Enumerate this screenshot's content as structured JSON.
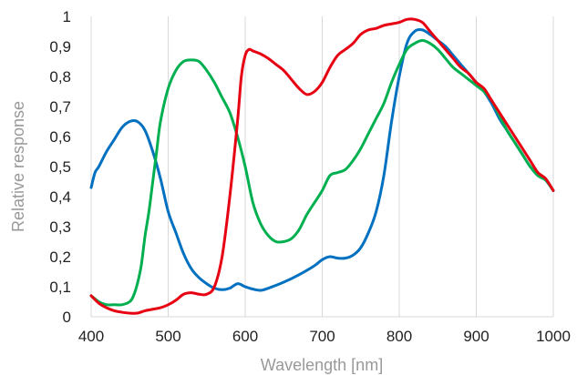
{
  "chart_data": {
    "type": "line",
    "title": "",
    "xlabel": "Wavelength [nm]",
    "ylabel": "Relative response",
    "xlim": [
      400,
      1000
    ],
    "ylim": [
      0,
      1
    ],
    "x_ticks": [
      400,
      500,
      600,
      700,
      800,
      900,
      1000
    ],
    "y_ticks": [
      0,
      0.1,
      0.2,
      0.3,
      0.4,
      0.5,
      0.6,
      0.7,
      0.8,
      0.9,
      1
    ],
    "y_tick_labels": [
      "0",
      "0,1",
      "0,2",
      "0,3",
      "0,4",
      "0,5",
      "0,6",
      "0,7",
      "0,8",
      "0,9",
      "1"
    ],
    "grid": "vertical",
    "legend": "none",
    "series": [
      {
        "color": "#0070c0",
        "points": [
          [
            400,
            0.43
          ],
          [
            405,
            0.48
          ],
          [
            410,
            0.5
          ],
          [
            420,
            0.55
          ],
          [
            430,
            0.59
          ],
          [
            440,
            0.63
          ],
          [
            450,
            0.65
          ],
          [
            460,
            0.65
          ],
          [
            470,
            0.62
          ],
          [
            480,
            0.55
          ],
          [
            490,
            0.46
          ],
          [
            500,
            0.35
          ],
          [
            510,
            0.28
          ],
          [
            520,
            0.21
          ],
          [
            530,
            0.16
          ],
          [
            540,
            0.13
          ],
          [
            550,
            0.11
          ],
          [
            560,
            0.095
          ],
          [
            570,
            0.09
          ],
          [
            580,
            0.095
          ],
          [
            590,
            0.11
          ],
          [
            600,
            0.1
          ],
          [
            610,
            0.092
          ],
          [
            620,
            0.088
          ],
          [
            630,
            0.095
          ],
          [
            650,
            0.115
          ],
          [
            670,
            0.14
          ],
          [
            690,
            0.17
          ],
          [
            700,
            0.19
          ],
          [
            710,
            0.2
          ],
          [
            720,
            0.195
          ],
          [
            730,
            0.195
          ],
          [
            740,
            0.205
          ],
          [
            750,
            0.23
          ],
          [
            760,
            0.28
          ],
          [
            770,
            0.35
          ],
          [
            780,
            0.47
          ],
          [
            790,
            0.65
          ],
          [
            800,
            0.8
          ],
          [
            810,
            0.91
          ],
          [
            820,
            0.95
          ],
          [
            830,
            0.955
          ],
          [
            840,
            0.94
          ],
          [
            850,
            0.92
          ],
          [
            860,
            0.9
          ],
          [
            870,
            0.87
          ],
          [
            880,
            0.84
          ],
          [
            890,
            0.81
          ],
          [
            900,
            0.78
          ],
          [
            910,
            0.75
          ],
          [
            920,
            0.71
          ],
          [
            930,
            0.66
          ],
          [
            940,
            0.62
          ],
          [
            950,
            0.58
          ],
          [
            960,
            0.54
          ],
          [
            970,
            0.5
          ],
          [
            980,
            0.47
          ],
          [
            990,
            0.455
          ],
          [
            1000,
            0.42
          ]
        ]
      },
      {
        "color": "#00b050",
        "points": [
          [
            400,
            0.07
          ],
          [
            410,
            0.05
          ],
          [
            420,
            0.04
          ],
          [
            430,
            0.04
          ],
          [
            440,
            0.04
          ],
          [
            450,
            0.05
          ],
          [
            455,
            0.07
          ],
          [
            460,
            0.11
          ],
          [
            465,
            0.17
          ],
          [
            470,
            0.27
          ],
          [
            475,
            0.35
          ],
          [
            480,
            0.45
          ],
          [
            485,
            0.55
          ],
          [
            490,
            0.65
          ],
          [
            500,
            0.76
          ],
          [
            510,
            0.82
          ],
          [
            520,
            0.85
          ],
          [
            530,
            0.855
          ],
          [
            540,
            0.85
          ],
          [
            550,
            0.82
          ],
          [
            560,
            0.78
          ],
          [
            570,
            0.73
          ],
          [
            580,
            0.68
          ],
          [
            590,
            0.6
          ],
          [
            600,
            0.5
          ],
          [
            610,
            0.38
          ],
          [
            620,
            0.31
          ],
          [
            630,
            0.27
          ],
          [
            640,
            0.25
          ],
          [
            650,
            0.25
          ],
          [
            660,
            0.26
          ],
          [
            670,
            0.29
          ],
          [
            680,
            0.34
          ],
          [
            690,
            0.38
          ],
          [
            700,
            0.42
          ],
          [
            710,
            0.47
          ],
          [
            720,
            0.48
          ],
          [
            730,
            0.49
          ],
          [
            740,
            0.52
          ],
          [
            750,
            0.56
          ],
          [
            760,
            0.61
          ],
          [
            770,
            0.66
          ],
          [
            780,
            0.71
          ],
          [
            790,
            0.78
          ],
          [
            800,
            0.84
          ],
          [
            810,
            0.89
          ],
          [
            820,
            0.91
          ],
          [
            830,
            0.92
          ],
          [
            840,
            0.91
          ],
          [
            850,
            0.89
          ],
          [
            860,
            0.86
          ],
          [
            870,
            0.83
          ],
          [
            880,
            0.81
          ],
          [
            890,
            0.79
          ],
          [
            900,
            0.77
          ],
          [
            910,
            0.75
          ],
          [
            920,
            0.72
          ],
          [
            930,
            0.67
          ],
          [
            940,
            0.62
          ],
          [
            950,
            0.58
          ],
          [
            960,
            0.54
          ],
          [
            970,
            0.5
          ],
          [
            980,
            0.47
          ],
          [
            990,
            0.455
          ],
          [
            1000,
            0.42
          ]
        ]
      },
      {
        "color": "#e60012",
        "points": [
          [
            400,
            0.07
          ],
          [
            410,
            0.045
          ],
          [
            420,
            0.03
          ],
          [
            430,
            0.02
          ],
          [
            440,
            0.015
          ],
          [
            450,
            0.012
          ],
          [
            460,
            0.012
          ],
          [
            470,
            0.02
          ],
          [
            480,
            0.025
          ],
          [
            490,
            0.03
          ],
          [
            500,
            0.04
          ],
          [
            510,
            0.055
          ],
          [
            520,
            0.075
          ],
          [
            530,
            0.08
          ],
          [
            540,
            0.075
          ],
          [
            550,
            0.075
          ],
          [
            560,
            0.1
          ],
          [
            570,
            0.2
          ],
          [
            580,
            0.4
          ],
          [
            590,
            0.65
          ],
          [
            595,
            0.8
          ],
          [
            600,
            0.87
          ],
          [
            605,
            0.89
          ],
          [
            610,
            0.885
          ],
          [
            620,
            0.875
          ],
          [
            630,
            0.86
          ],
          [
            640,
            0.84
          ],
          [
            650,
            0.82
          ],
          [
            660,
            0.79
          ],
          [
            670,
            0.76
          ],
          [
            680,
            0.74
          ],
          [
            690,
            0.75
          ],
          [
            700,
            0.78
          ],
          [
            710,
            0.83
          ],
          [
            720,
            0.87
          ],
          [
            730,
            0.89
          ],
          [
            740,
            0.91
          ],
          [
            750,
            0.94
          ],
          [
            760,
            0.955
          ],
          [
            770,
            0.96
          ],
          [
            780,
            0.97
          ],
          [
            790,
            0.975
          ],
          [
            800,
            0.98
          ],
          [
            810,
            0.99
          ],
          [
            820,
            0.99
          ],
          [
            830,
            0.98
          ],
          [
            840,
            0.95
          ],
          [
            850,
            0.92
          ],
          [
            860,
            0.89
          ],
          [
            870,
            0.86
          ],
          [
            880,
            0.83
          ],
          [
            890,
            0.81
          ],
          [
            900,
            0.78
          ],
          [
            910,
            0.76
          ],
          [
            920,
            0.72
          ],
          [
            930,
            0.68
          ],
          [
            940,
            0.64
          ],
          [
            950,
            0.6
          ],
          [
            960,
            0.56
          ],
          [
            970,
            0.52
          ],
          [
            980,
            0.48
          ],
          [
            990,
            0.46
          ],
          [
            1000,
            0.42
          ]
        ]
      }
    ]
  }
}
